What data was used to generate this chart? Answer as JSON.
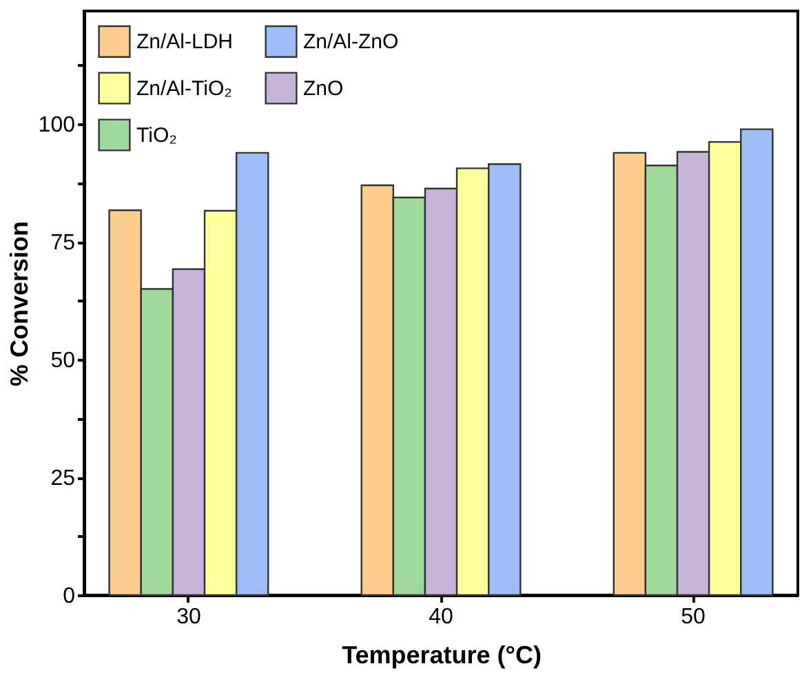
{
  "chart_data": {
    "type": "bar",
    "xlabel": "Temperature (°C)",
    "ylabel": "% Conversion",
    "categories": [
      "30",
      "40",
      "50"
    ],
    "series": [
      {
        "name": "Zn/Al-LDH",
        "color": "#fdcc8f",
        "values": [
          81.7,
          87.0,
          93.9
        ]
      },
      {
        "name": "TiO₂",
        "color": "#9ed89b",
        "values": [
          65.0,
          84.4,
          91.2
        ]
      },
      {
        "name": "ZnO",
        "color": "#c6b3d8",
        "values": [
          69.2,
          86.3,
          94.1
        ]
      },
      {
        "name": "Zn/Al-TiO₂",
        "color": "#fefe9c",
        "values": [
          81.6,
          90.6,
          96.2
        ]
      },
      {
        "name": "Zn/Al-ZnO",
        "color": "#9dbdf6",
        "values": [
          93.9,
          91.5,
          98.9
        ]
      }
    ],
    "ylim": [
      0,
      124
    ],
    "yticks": [
      0,
      {
        "value": 12.5,
        "label": null
      },
      25,
      {
        "value": 37.5,
        "label": null
      },
      50,
      {
        "value": 62.5,
        "label": null
      },
      75,
      {
        "value": 87.5,
        "label": null
      },
      100,
      {
        "value": 112.5,
        "label": null
      }
    ],
    "grid": false,
    "legend": "top left"
  }
}
